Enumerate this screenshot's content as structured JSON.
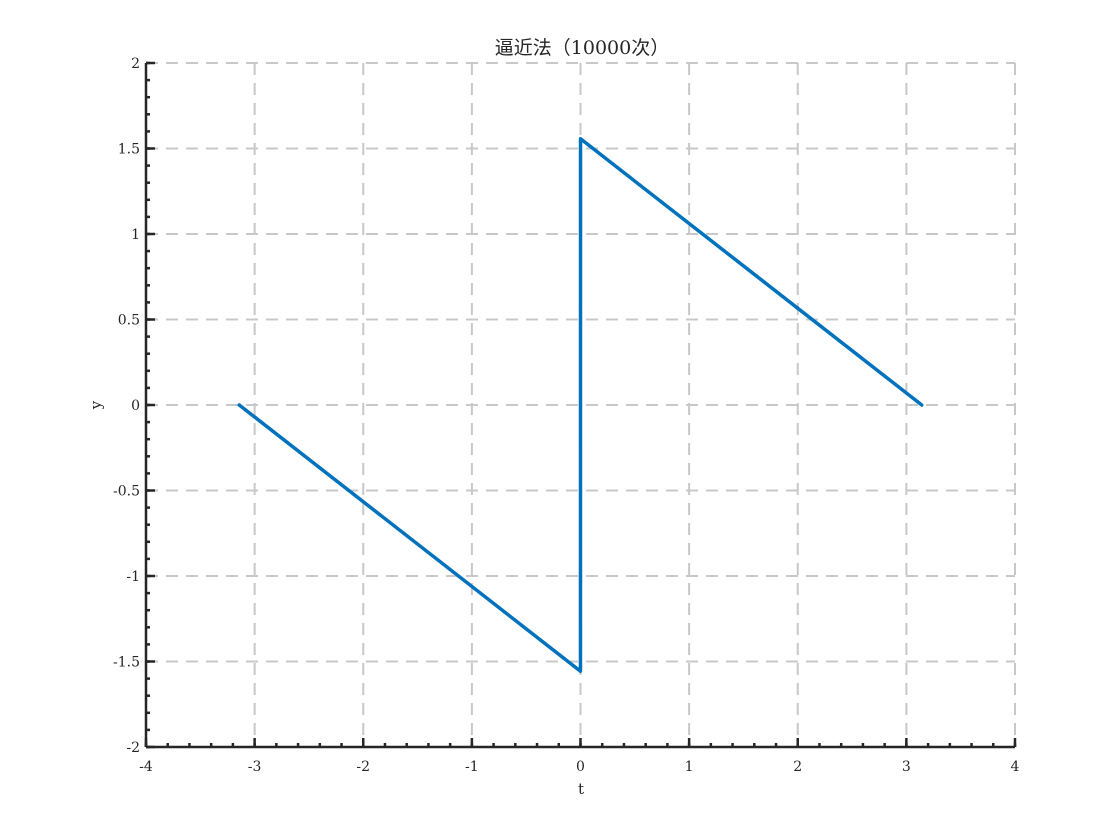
{
  "chart_data": {
    "type": "line",
    "title": "逼近法（10000次）",
    "xlabel": "t",
    "ylabel": "y",
    "xlim": [
      -4,
      4
    ],
    "ylim": [
      -2,
      2
    ],
    "xticks": [
      -4,
      -3,
      -2,
      -1,
      0,
      1,
      2,
      3,
      4
    ],
    "yticks": [
      -2,
      -1.5,
      -1,
      -0.5,
      0,
      0.5,
      1,
      1.5,
      2
    ],
    "xtick_labels": [
      "-4",
      "-3",
      "-2",
      "-1",
      "0",
      "1",
      "2",
      "3",
      "4"
    ],
    "ytick_labels": [
      "-2",
      "-1.5",
      "-1",
      "-0.5",
      "0",
      "0.5",
      "1",
      "1.5",
      "2"
    ],
    "grid": true,
    "series": [
      {
        "color": "#0072BD",
        "x": [
          -3.1416,
          -0.0003,
          0.0003,
          3.1416
        ],
        "y": [
          0,
          -1.5567,
          1.5567,
          0
        ]
      }
    ]
  }
}
